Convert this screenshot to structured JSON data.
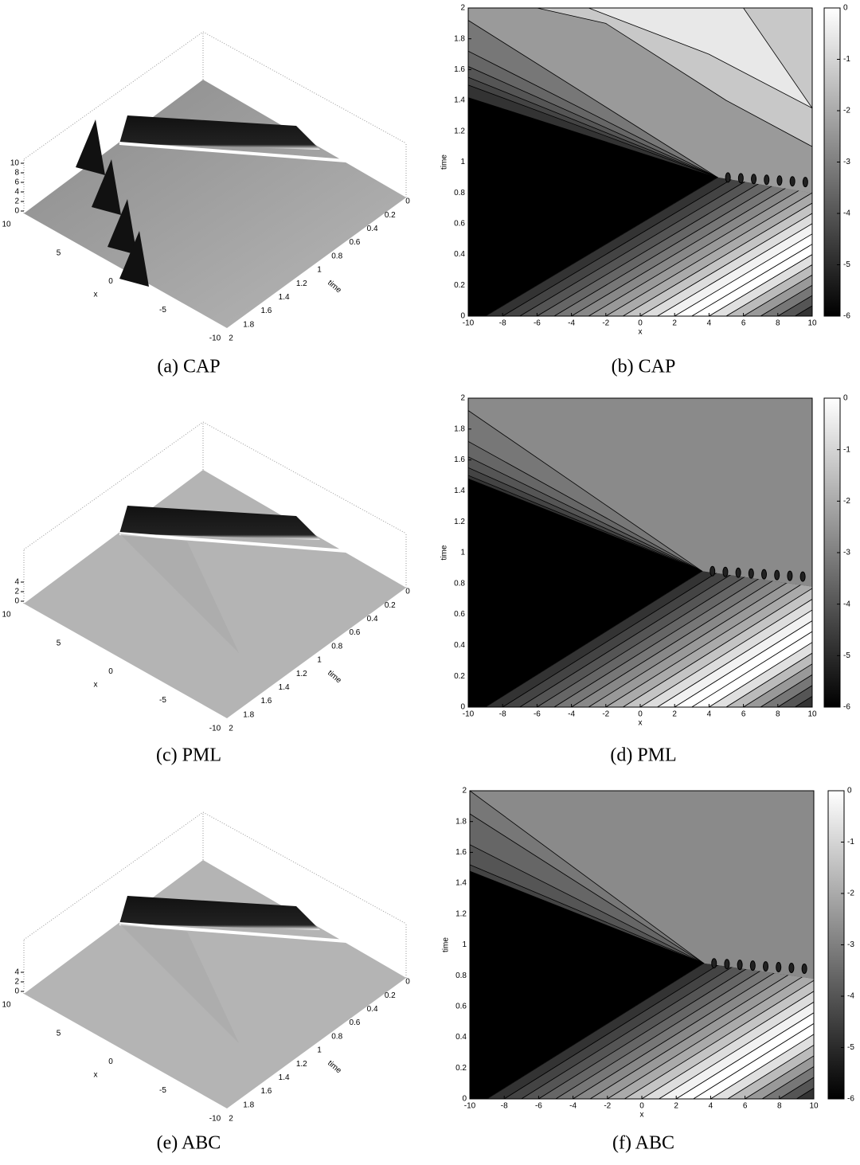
{
  "panels": [
    {
      "caption": "(a) CAP",
      "kind": "surface",
      "zticks": [
        0,
        2,
        4,
        6,
        8,
        10
      ],
      "xticks": [
        10,
        5,
        0,
        -5,
        -10
      ],
      "timeticks": [
        0,
        0.2,
        0.4,
        0.6,
        0.8,
        1,
        1.2,
        1.4,
        1.6,
        1.8,
        2
      ],
      "xlabel": "x",
      "timelabel": "time"
    },
    {
      "caption": "(b) CAP",
      "kind": "contour",
      "xticks": [
        -10,
        -8,
        -6,
        -4,
        -2,
        0,
        2,
        4,
        6,
        8,
        10
      ],
      "yticks": [
        0,
        0.2,
        0.4,
        0.6,
        0.8,
        1,
        1.2,
        1.4,
        1.6,
        1.8,
        2
      ],
      "colorbar_ticks": [
        0,
        -1,
        -2,
        -3,
        -4,
        -5,
        -6
      ],
      "xlabel": "x",
      "ylabel": "time"
    },
    {
      "caption": "(c) PML",
      "kind": "surface",
      "zticks": [
        0,
        2,
        4
      ],
      "xticks": [
        10,
        5,
        0,
        -5,
        -10
      ],
      "timeticks": [
        0,
        0.2,
        0.4,
        0.6,
        0.8,
        1,
        1.2,
        1.4,
        1.6,
        1.8,
        2
      ],
      "xlabel": "x",
      "timelabel": "time"
    },
    {
      "caption": "(d) PML",
      "kind": "contour",
      "xticks": [
        -10,
        -8,
        -6,
        -4,
        -2,
        0,
        2,
        4,
        6,
        8,
        10
      ],
      "yticks": [
        0,
        0.2,
        0.4,
        0.6,
        0.8,
        1,
        1.2,
        1.4,
        1.6,
        1.8,
        2
      ],
      "colorbar_ticks": [
        0,
        -1,
        -2,
        -3,
        -4,
        -5,
        -6
      ],
      "xlabel": "x",
      "ylabel": "time"
    },
    {
      "caption": "(e) ABC",
      "kind": "surface",
      "zticks": [
        0,
        2,
        4
      ],
      "xticks": [
        10,
        5,
        0,
        -5,
        -10
      ],
      "timeticks": [
        0,
        0.2,
        0.4,
        0.6,
        0.8,
        1,
        1.2,
        1.4,
        1.6,
        1.8,
        2
      ],
      "xlabel": "x",
      "timelabel": "time"
    },
    {
      "caption": "(f) ABC",
      "kind": "contour",
      "xticks": [
        -10,
        -8,
        -6,
        -4,
        -2,
        0,
        2,
        4,
        6,
        8,
        10
      ],
      "yticks": [
        0,
        0.2,
        0.4,
        0.6,
        0.8,
        1,
        1.2,
        1.4,
        1.6,
        1.8,
        2
      ],
      "colorbar_ticks": [
        0,
        -1,
        -2,
        -3,
        -4,
        -5,
        -6
      ],
      "xlabel": "x",
      "ylabel": "time"
    }
  ]
}
